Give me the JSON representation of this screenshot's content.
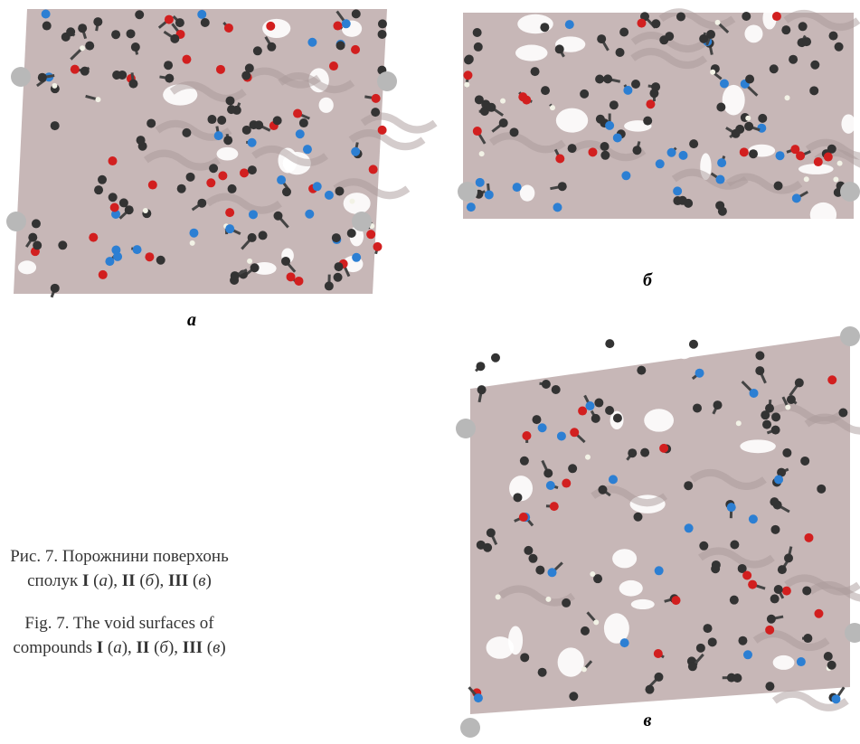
{
  "panels": [
    {
      "label": "а"
    },
    {
      "label": "б"
    },
    {
      "label": "в"
    }
  ],
  "caption_uk": {
    "line1": "Рис. 7. Порожнини поверхонь",
    "line2": [
      "сполук ",
      "I",
      " (",
      "а",
      "), ",
      "II",
      " (",
      "б",
      "), ",
      "III",
      " (",
      "в",
      ")"
    ]
  },
  "caption_en": {
    "line1": "Fig. 7. The void surfaces of",
    "line2": [
      "compounds ",
      "I",
      " (",
      "a",
      "), ",
      "II",
      " (",
      "б",
      "), ",
      "III",
      " (",
      "в",
      ")"
    ]
  }
}
